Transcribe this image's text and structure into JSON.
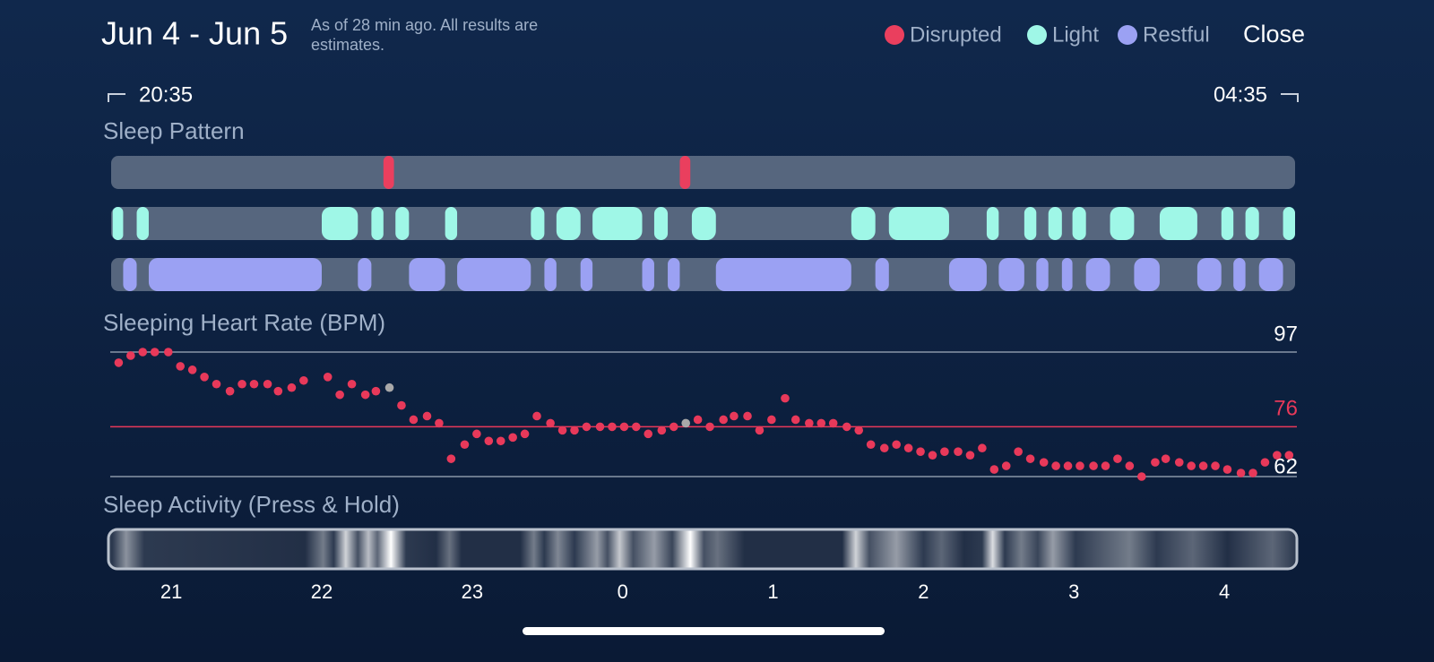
{
  "header": {
    "title": "Jun 4 - Jun 5",
    "note": "As of 28 min ago. All results are estimates.",
    "close": "Close",
    "start_time": "20:35",
    "end_time": "04:35"
  },
  "xlim": [
    20.6,
    28.47
  ],
  "xticks": [
    21,
    22,
    23,
    {
      "value": 24,
      "label": "0"
    },
    {
      "value": 25,
      "label": "1"
    },
    {
      "value": 26,
      "label": "2"
    },
    {
      "value": 27,
      "label": "3"
    },
    {
      "value": 28,
      "label": "4"
    }
  ],
  "sleep_pattern": {
    "title": "Sleep Pattern",
    "stages": [
      {
        "name": "Disrupted",
        "color": "#ea3f5e",
        "segments": [
          [
            22.41,
            22.48
          ],
          [
            24.38,
            24.45
          ]
        ]
      },
      {
        "name": "Light",
        "color": "#9ff7e7",
        "segments": [
          [
            20.61,
            20.68
          ],
          [
            20.77,
            20.85
          ],
          [
            22.0,
            22.24
          ],
          [
            22.33,
            22.41
          ],
          [
            22.49,
            22.58
          ],
          [
            22.82,
            22.9
          ],
          [
            23.39,
            23.48
          ],
          [
            23.56,
            23.72
          ],
          [
            23.8,
            24.13
          ],
          [
            24.21,
            24.3
          ],
          [
            24.46,
            24.62
          ],
          [
            25.52,
            25.68
          ],
          [
            25.77,
            26.17
          ],
          [
            26.42,
            26.5
          ],
          [
            26.67,
            26.75
          ],
          [
            26.83,
            26.92
          ],
          [
            26.99,
            27.08
          ],
          [
            27.24,
            27.4
          ],
          [
            27.57,
            27.82
          ],
          [
            27.98,
            28.06
          ],
          [
            28.14,
            28.23
          ],
          [
            28.39,
            28.47
          ]
        ]
      },
      {
        "name": "Restful",
        "color": "#9ba1f3",
        "segments": [
          [
            20.68,
            20.77
          ],
          [
            20.85,
            22.0
          ],
          [
            22.24,
            22.33
          ],
          [
            22.58,
            22.82
          ],
          [
            22.9,
            23.39
          ],
          [
            23.48,
            23.56
          ],
          [
            23.72,
            23.8
          ],
          [
            24.13,
            24.21
          ],
          [
            24.3,
            24.38
          ],
          [
            24.62,
            25.52
          ],
          [
            25.68,
            25.77
          ],
          [
            26.17,
            26.42
          ],
          [
            26.5,
            26.67
          ],
          [
            26.75,
            26.83
          ],
          [
            26.92,
            26.99
          ],
          [
            27.08,
            27.24
          ],
          [
            27.4,
            27.57
          ],
          [
            27.82,
            27.98
          ],
          [
            28.06,
            28.14
          ],
          [
            28.23,
            28.39
          ]
        ]
      }
    ]
  },
  "heart_rate": {
    "type": "scatter",
    "title": "Sleeping Heart Rate (BPM)",
    "color": "#e8395a",
    "x": [
      20.65,
      20.73,
      20.81,
      20.89,
      20.98,
      21.06,
      21.14,
      21.22,
      21.3,
      21.39,
      21.47,
      21.55,
      21.64,
      21.71,
      21.8,
      21.88,
      22.04,
      22.12,
      22.2,
      22.29,
      22.36,
      22.45,
      22.53,
      22.61,
      22.7,
      22.78,
      22.86,
      22.95,
      23.03,
      23.11,
      23.19,
      23.27,
      23.35,
      23.43,
      23.52,
      23.6,
      23.68,
      23.76,
      23.85,
      23.93,
      24.01,
      24.09,
      24.17,
      24.26,
      24.34,
      24.42,
      24.5,
      24.58,
      24.67,
      24.74,
      24.83,
      24.91,
      24.99,
      25.08,
      25.15,
      25.24,
      25.32,
      25.4,
      25.49,
      25.57,
      25.65,
      25.74,
      25.82,
      25.9,
      25.98,
      26.06,
      26.14,
      26.23,
      26.31,
      26.39,
      26.47,
      26.55,
      26.63,
      26.71,
      26.8,
      26.88,
      26.96,
      27.04,
      27.13,
      27.21,
      27.29,
      27.37,
      27.45,
      27.54,
      27.61,
      27.7,
      27.78,
      27.86,
      27.94,
      28.02,
      28.11,
      28.19,
      28.27,
      28.35,
      28.43
    ],
    "values": [
      94,
      96,
      97,
      97,
      97,
      93,
      92,
      90,
      88,
      86,
      88,
      88,
      88,
      86,
      87,
      89,
      90,
      85,
      88,
      85,
      86,
      87,
      82,
      78,
      79,
      77,
      67,
      71,
      74,
      72,
      72,
      73,
      74,
      79,
      77,
      75,
      75,
      76,
      76,
      76,
      76,
      76,
      74,
      75,
      76,
      77,
      78,
      76,
      78,
      79,
      79,
      75,
      78,
      84,
      78,
      77,
      77,
      77,
      76,
      75,
      71,
      70,
      71,
      70,
      69,
      68,
      69,
      69,
      68,
      70,
      64,
      65,
      69,
      67,
      66,
      65,
      65,
      65,
      65,
      65,
      67,
      65,
      62,
      66,
      67,
      66,
      65,
      65,
      65,
      64,
      63,
      63,
      66,
      68,
      68
    ],
    "highlight": {
      "indices": [
        21,
        45
      ],
      "color": "#a9a9a9"
    },
    "ylim": [
      62,
      97
    ],
    "yticks": [
      62,
      97
    ],
    "reference_line": {
      "value": 76,
      "color": "#e8395a"
    }
  },
  "sleep_activity": {
    "title": "Sleep Activity (Press & Hold)",
    "x": [
      20.61,
      20.7,
      20.82,
      21.89,
      22.01,
      22.08,
      22.16,
      22.24,
      22.31,
      22.37,
      22.46,
      22.56,
      22.76,
      22.85,
      22.93,
      23.32,
      23.41,
      23.48,
      23.57,
      23.68,
      23.83,
      23.9,
      23.98,
      24.07,
      24.21,
      24.33,
      24.45,
      24.54,
      24.63,
      24.81,
      25.46,
      25.55,
      25.64,
      25.82,
      26.0,
      26.12,
      26.27,
      26.39,
      26.46,
      26.54,
      26.65,
      26.76,
      26.86,
      27.01,
      27.37,
      27.55,
      27.79,
      28.02,
      28.32,
      28.47
    ],
    "values": [
      0.1,
      0.5,
      0.1,
      0.05,
      0.4,
      0.1,
      0.8,
      0.2,
      0.7,
      0.3,
      1.0,
      0.1,
      0.05,
      0.35,
      0.05,
      0.05,
      0.4,
      0.1,
      0.45,
      0.1,
      0.55,
      0.2,
      0.75,
      0.2,
      0.55,
      0.15,
      1.0,
      0.2,
      0.35,
      0.05,
      0.05,
      0.8,
      0.2,
      0.55,
      0.1,
      0.3,
      0.05,
      0.1,
      0.85,
      0.1,
      0.4,
      0.15,
      0.55,
      0.1,
      0.4,
      0.1,
      0.3,
      0.05,
      0.3,
      0.1
    ]
  }
}
